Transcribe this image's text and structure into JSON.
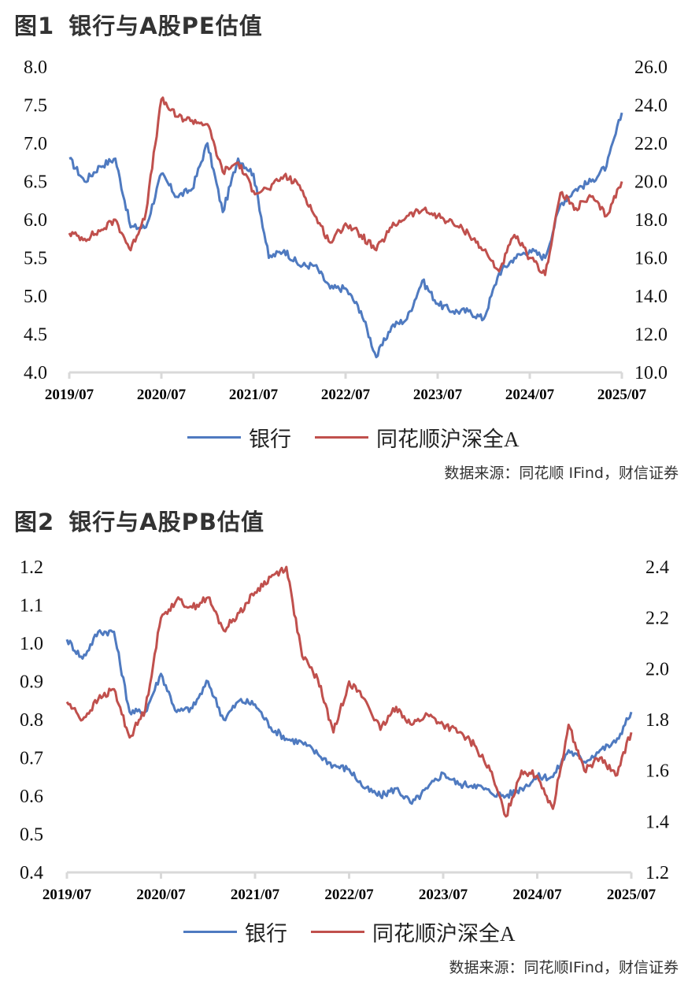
{
  "figures": [
    {
      "title_num": "图1",
      "title_text": "银行与A股PE估值",
      "legend": [
        "银行",
        "同花顺沪深全A"
      ],
      "source": "数据来源：同花顺 IFind，财信证券"
    },
    {
      "title_num": "图2",
      "title_text": "银行与A股PB估值",
      "legend": [
        "银行",
        "同花顺沪深全A"
      ],
      "source": "数据来源：同花顺IFind，财信证券"
    }
  ],
  "colors": {
    "bank": "#4f7ac0",
    "all_a": "#c0504d",
    "axis": "#d9d9d9"
  },
  "chart_data": [
    {
      "type": "line",
      "title": "图1 银行与A股PE估值",
      "xlabel": "",
      "ylabel": "",
      "x_ticks": [
        "2019/07",
        "2020/07",
        "2021/07",
        "2022/07",
        "2023/07",
        "2024/07",
        "2025/07"
      ],
      "y_left": {
        "ticks": [
          "4.0",
          "4.5",
          "5.0",
          "5.5",
          "6.0",
          "6.5",
          "7.0",
          "7.5",
          "8.0"
        ],
        "range": [
          4.0,
          8.0
        ]
      },
      "y_right": {
        "ticks": [
          "10.0",
          "12.0",
          "14.0",
          "16.0",
          "18.0",
          "20.0",
          "22.0",
          "24.0",
          "26.0"
        ],
        "range": [
          10.0,
          26.0
        ]
      },
      "grid": false,
      "legend_position": "bottom",
      "x": [
        "2019/07",
        "2019/09",
        "2019/11",
        "2020/01",
        "2020/03",
        "2020/05",
        "2020/07",
        "2020/09",
        "2020/11",
        "2021/01",
        "2021/03",
        "2021/05",
        "2021/07",
        "2021/09",
        "2021/11",
        "2022/01",
        "2022/03",
        "2022/05",
        "2022/07",
        "2022/09",
        "2022/11",
        "2023/01",
        "2023/03",
        "2023/05",
        "2023/07",
        "2023/09",
        "2023/11",
        "2024/01",
        "2024/03",
        "2024/05",
        "2024/07",
        "2024/09",
        "2024/11",
        "2025/01",
        "2025/03",
        "2025/05",
        "2025/07"
      ],
      "series": [
        {
          "name": "银行",
          "axis": "left",
          "values": [
            6.8,
            6.5,
            6.7,
            6.8,
            5.9,
            5.9,
            6.6,
            6.3,
            6.4,
            7.0,
            6.1,
            6.8,
            6.6,
            5.5,
            5.6,
            5.4,
            5.4,
            5.1,
            5.1,
            4.8,
            4.2,
            4.6,
            4.7,
            5.2,
            4.9,
            4.8,
            4.8,
            4.7,
            5.3,
            5.5,
            5.6,
            5.5,
            6.2,
            6.4,
            6.5,
            6.7,
            7.4
          ]
        },
        {
          "name": "同花顺沪深全A",
          "axis": "right",
          "values": [
            17.3,
            17.0,
            17.4,
            18.0,
            16.4,
            18.4,
            24.3,
            23.4,
            23.2,
            23.0,
            20.5,
            21.0,
            19.5,
            19.6,
            20.3,
            19.8,
            18.2,
            16.8,
            17.8,
            17.2,
            16.4,
            17.6,
            18.2,
            18.5,
            18.2,
            17.8,
            17.3,
            16.4,
            15.3,
            17.2,
            16.0,
            15.1,
            19.4,
            18.6,
            19.2,
            18.2,
            20.0
          ]
        }
      ]
    },
    {
      "type": "line",
      "title": "图2 银行与A股PB估值",
      "xlabel": "",
      "ylabel": "",
      "x_ticks": [
        "2019/07",
        "2020/07",
        "2021/07",
        "2022/07",
        "2023/07",
        "2024/07",
        "2025/07"
      ],
      "y_left": {
        "ticks": [
          "0.4",
          "0.5",
          "0.6",
          "0.7",
          "0.8",
          "0.9",
          "1.0",
          "1.1",
          "1.2"
        ],
        "range": [
          0.4,
          1.2
        ]
      },
      "y_right": {
        "ticks": [
          "1.2",
          "1.4",
          "1.6",
          "1.8",
          "2.0",
          "2.2",
          "2.4"
        ],
        "range": [
          1.2,
          2.4
        ]
      },
      "grid": false,
      "legend_position": "bottom",
      "x": [
        "2019/07",
        "2019/09",
        "2019/11",
        "2020/01",
        "2020/03",
        "2020/05",
        "2020/07",
        "2020/09",
        "2020/11",
        "2021/01",
        "2021/03",
        "2021/05",
        "2021/07",
        "2021/09",
        "2021/11",
        "2022/01",
        "2022/03",
        "2022/05",
        "2022/07",
        "2022/09",
        "2022/11",
        "2023/01",
        "2023/03",
        "2023/05",
        "2023/07",
        "2023/09",
        "2023/11",
        "2024/01",
        "2024/03",
        "2024/05",
        "2024/07",
        "2024/09",
        "2024/11",
        "2025/01",
        "2025/03",
        "2025/05",
        "2025/07"
      ],
      "series": [
        {
          "name": "银行",
          "axis": "left",
          "values": [
            1.01,
            0.96,
            1.03,
            1.03,
            0.82,
            0.82,
            0.92,
            0.82,
            0.83,
            0.9,
            0.8,
            0.85,
            0.84,
            0.78,
            0.75,
            0.74,
            0.71,
            0.68,
            0.67,
            0.62,
            0.6,
            0.62,
            0.58,
            0.62,
            0.66,
            0.63,
            0.63,
            0.61,
            0.6,
            0.62,
            0.65,
            0.65,
            0.72,
            0.69,
            0.72,
            0.74,
            0.82
          ]
        },
        {
          "name": "同花顺沪深全A",
          "axis": "right",
          "values": [
            1.87,
            1.8,
            1.88,
            1.92,
            1.73,
            1.84,
            2.2,
            2.27,
            2.24,
            2.28,
            2.15,
            2.22,
            2.3,
            2.36,
            2.4,
            2.05,
            1.96,
            1.75,
            1.95,
            1.88,
            1.76,
            1.85,
            1.78,
            1.82,
            1.78,
            1.75,
            1.7,
            1.6,
            1.42,
            1.6,
            1.58,
            1.45,
            1.78,
            1.6,
            1.65,
            1.58,
            1.75
          ]
        }
      ]
    }
  ]
}
